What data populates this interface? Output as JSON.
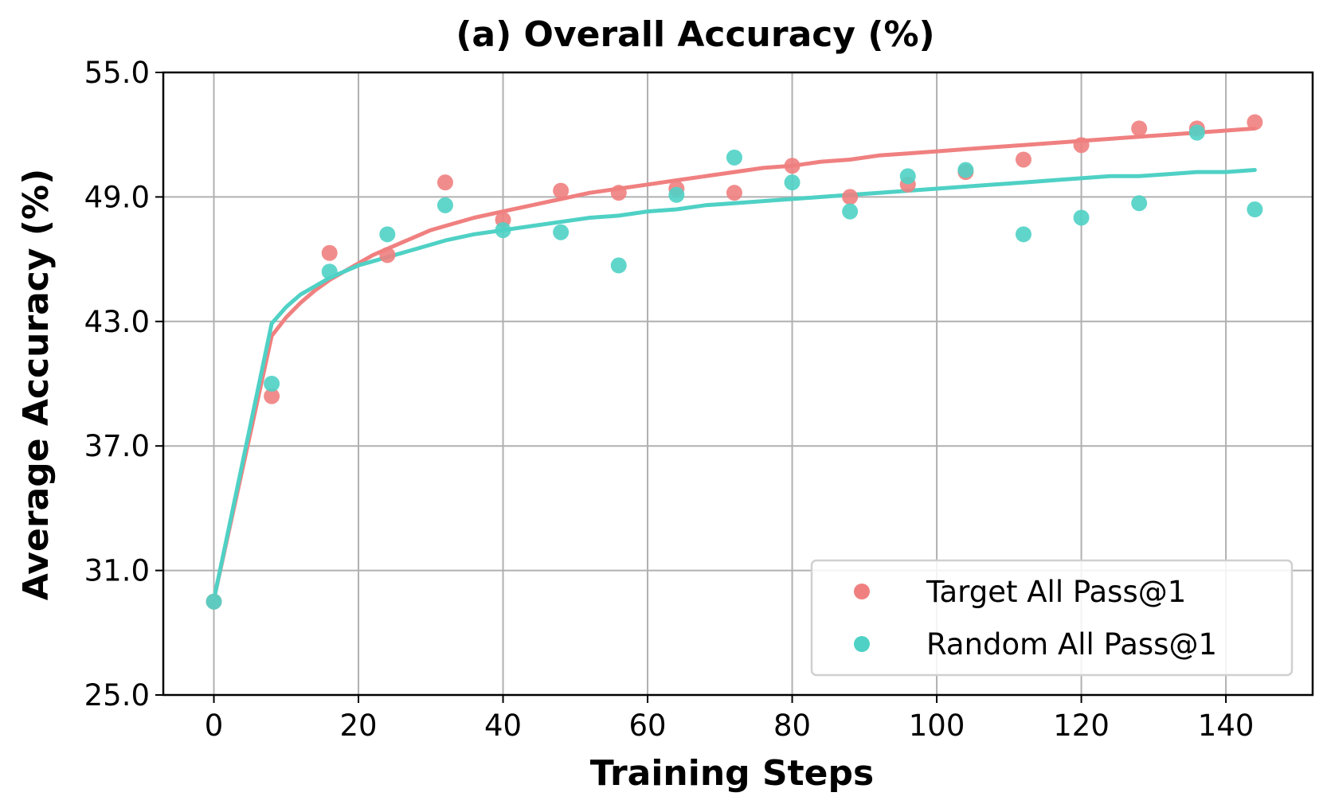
{
  "chart_data": {
    "type": "scatter",
    "title": "(a) Overall Accuracy (%)",
    "xlabel": "Training Steps",
    "ylabel": "Average Accuracy (%)",
    "xlim": [
      -7,
      152
    ],
    "ylim": [
      25,
      55
    ],
    "xticks": [
      0,
      20,
      40,
      60,
      80,
      100,
      120,
      140
    ],
    "xtick_labels": [
      "0",
      "20",
      "40",
      "60",
      "80",
      "100",
      "120",
      "140"
    ],
    "yticks": [
      25,
      31,
      37,
      43,
      49,
      55
    ],
    "ytick_labels": [
      "25.0",
      "31.0",
      "37.0",
      "43.0",
      "49.0",
      "55.0"
    ],
    "grid": true,
    "legend_position": "bottom-right",
    "series": [
      {
        "name": "Target All Pass@1",
        "color": "#f08080",
        "marker": "circle",
        "x": [
          0,
          8,
          16,
          24,
          32,
          40,
          48,
          56,
          64,
          72,
          80,
          88,
          96,
          104,
          112,
          120,
          128,
          136,
          144
        ],
        "values": [
          29.5,
          39.4,
          46.3,
          46.2,
          49.7,
          47.9,
          49.3,
          49.2,
          49.4,
          49.2,
          50.5,
          49.0,
          49.6,
          50.2,
          50.8,
          51.5,
          52.3,
          52.3,
          52.6
        ],
        "fit_curve": {
          "x": [
            0,
            8,
            10,
            12,
            14,
            16,
            18,
            20,
            22,
            24,
            26,
            28,
            30,
            32,
            36,
            40,
            44,
            48,
            52,
            56,
            60,
            64,
            68,
            72,
            76,
            80,
            84,
            88,
            92,
            96,
            100,
            104,
            108,
            112,
            116,
            120,
            124,
            128,
            132,
            136,
            140,
            144
          ],
          "values": [
            29.6,
            42.3,
            43.2,
            43.9,
            44.5,
            45.0,
            45.4,
            45.8,
            46.2,
            46.5,
            46.8,
            47.1,
            47.4,
            47.6,
            48.0,
            48.3,
            48.6,
            48.9,
            49.2,
            49.4,
            49.6,
            49.8,
            50.0,
            50.2,
            50.4,
            50.5,
            50.7,
            50.8,
            51.0,
            51.1,
            51.2,
            51.3,
            51.4,
            51.5,
            51.6,
            51.7,
            51.8,
            51.9,
            52.0,
            52.1,
            52.2,
            52.3
          ]
        }
      },
      {
        "name": "Random All Pass@1",
        "color": "#4fd1c5",
        "marker": "circle",
        "x": [
          0,
          8,
          16,
          24,
          32,
          40,
          48,
          56,
          64,
          72,
          80,
          88,
          96,
          104,
          112,
          120,
          128,
          136,
          144
        ],
        "values": [
          29.5,
          40.0,
          45.4,
          47.2,
          48.6,
          47.4,
          47.3,
          45.7,
          49.1,
          50.9,
          49.7,
          48.3,
          50.0,
          50.3,
          47.2,
          48.0,
          48.7,
          52.1,
          48.4
        ],
        "fit_curve": {
          "x": [
            0,
            8,
            10,
            12,
            14,
            16,
            18,
            20,
            22,
            24,
            26,
            28,
            30,
            32,
            36,
            40,
            44,
            48,
            52,
            56,
            60,
            64,
            68,
            72,
            76,
            80,
            84,
            88,
            92,
            96,
            100,
            104,
            108,
            112,
            116,
            120,
            124,
            128,
            132,
            136,
            140,
            144
          ],
          "values": [
            29.6,
            42.9,
            43.7,
            44.3,
            44.7,
            45.1,
            45.4,
            45.7,
            45.9,
            46.1,
            46.3,
            46.5,
            46.7,
            46.9,
            47.2,
            47.4,
            47.6,
            47.8,
            48.0,
            48.1,
            48.3,
            48.4,
            48.6,
            48.7,
            48.8,
            48.9,
            49.0,
            49.1,
            49.2,
            49.3,
            49.4,
            49.5,
            49.6,
            49.7,
            49.8,
            49.9,
            50.0,
            50.0,
            50.1,
            50.2,
            50.2,
            50.3
          ]
        }
      }
    ]
  }
}
